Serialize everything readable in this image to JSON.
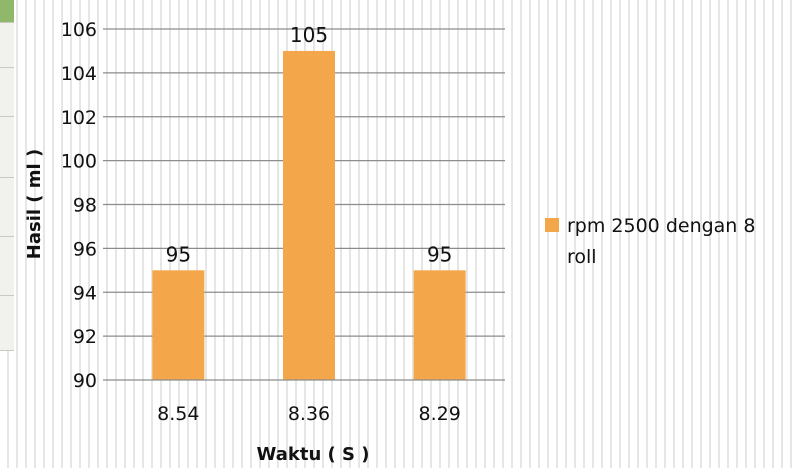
{
  "chart_data": {
    "type": "bar",
    "categories": [
      "8.54",
      "8.36",
      "8.29"
    ],
    "series": [
      {
        "name": "rpm 2500 dengan 8 roll",
        "values": [
          95,
          105,
          95
        ],
        "color": "#f4a64a"
      }
    ],
    "data_labels": [
      "95",
      "105",
      "95"
    ],
    "ylim": [
      90,
      106
    ],
    "ytick_step": 2,
    "yticks": [
      "90",
      "92",
      "94",
      "96",
      "98",
      "100",
      "102",
      "104",
      "106"
    ],
    "xlabel": "Waktu ( S )",
    "ylabel": "Hasil ( ml )",
    "legend_position": "right",
    "grid": true
  },
  "legend": {
    "line1": "rpm 2500 dengan 8",
    "line2": "roll"
  }
}
